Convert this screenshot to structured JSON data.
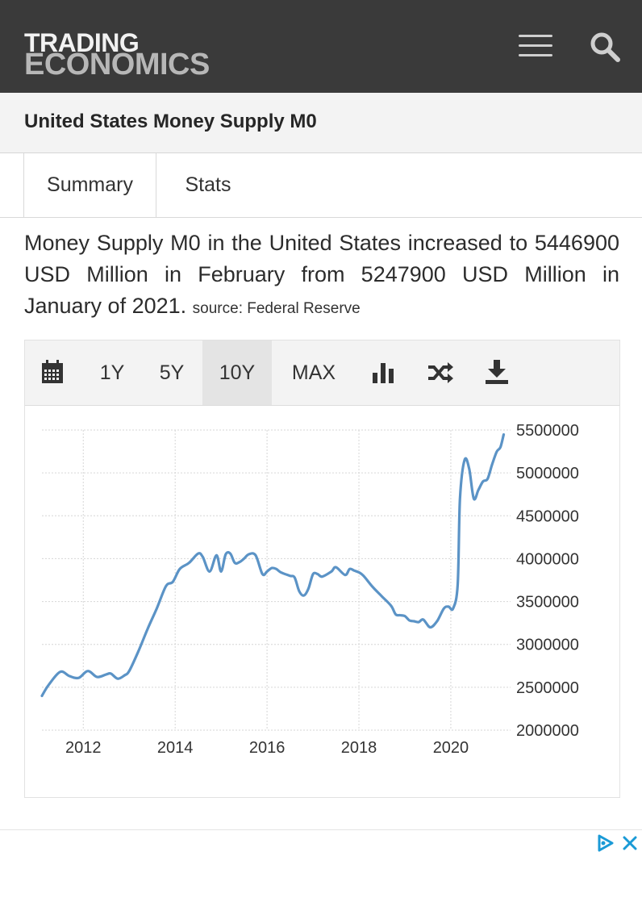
{
  "header": {
    "logo_line1": "TRADING",
    "logo_line2": "ECONOMICS",
    "menu_icon": "hamburger-icon",
    "search_icon": "search-icon"
  },
  "page": {
    "title": "United States Money Supply M0"
  },
  "tabs": [
    {
      "label": "Summary",
      "active": true
    },
    {
      "label": "Stats",
      "active": false
    }
  ],
  "summary": {
    "text": "Money Supply M0 in the United States increased to 5446900 USD Million in February from 5247900 USD Million in January of 2021.",
    "source": "source: Federal Reserve"
  },
  "chart_toolbar": {
    "calendar_icon": "calendar-icon",
    "ranges": [
      "1Y",
      "5Y",
      "10Y",
      "MAX"
    ],
    "selected_range": "10Y",
    "chart_type_icon": "bar-chart-icon",
    "compare_icon": "shuffle-icon",
    "download_icon": "download-icon"
  },
  "colors": {
    "line": "#5b93c6",
    "topbar": "#3a3a3a",
    "grid": "#d6d6d6"
  },
  "chart_data": {
    "type": "line",
    "title": "",
    "xlabel": "",
    "ylabel": "",
    "xlim": [
      2011.1,
      2021.3
    ],
    "ylim": [
      2000000,
      5500000
    ],
    "x_ticks": [
      2012,
      2014,
      2016,
      2018,
      2020
    ],
    "x_tick_labels": [
      "2012",
      "2014",
      "2016",
      "2018",
      "2020"
    ],
    "y_ticks": [
      2000000,
      2500000,
      3000000,
      3500000,
      4000000,
      4500000,
      5000000,
      5500000
    ],
    "y_tick_labels": [
      "2000000",
      "2500000",
      "3000000",
      "3500000",
      "4000000",
      "4500000",
      "5000000",
      "5500000"
    ],
    "grid": true,
    "legend": "none",
    "series": [
      {
        "x": [
          2011.1,
          2011.25,
          2011.5,
          2011.7,
          2011.9,
          2012.1,
          2012.3,
          2012.5,
          2012.6,
          2012.75,
          2012.9,
          2013.0,
          2013.2,
          2013.4,
          2013.6,
          2013.8,
          2013.95,
          2014.1,
          2014.3,
          2014.5,
          2014.6,
          2014.75,
          2014.9,
          2015.0,
          2015.1,
          2015.2,
          2015.3,
          2015.4,
          2015.5,
          2015.6,
          2015.75,
          2015.9,
          2016.0,
          2016.1,
          2016.2,
          2016.3,
          2016.5,
          2016.6,
          2016.7,
          2016.8,
          2016.9,
          2017.0,
          2017.1,
          2017.2,
          2017.4,
          2017.5,
          2017.7,
          2017.8,
          2017.9,
          2018.0,
          2018.1,
          2018.3,
          2018.5,
          2018.7,
          2018.8,
          2018.9,
          2019.0,
          2019.1,
          2019.2,
          2019.3,
          2019.4,
          2019.55,
          2019.7,
          2019.85,
          2019.95,
          2020.05,
          2020.15,
          2020.2,
          2020.3,
          2020.4,
          2020.5,
          2020.6,
          2020.7,
          2020.8,
          2020.9,
          2021.0,
          2021.08,
          2021.15
        ],
        "values": [
          2400000,
          2530000,
          2680000,
          2630000,
          2610000,
          2690000,
          2620000,
          2650000,
          2660000,
          2600000,
          2640000,
          2690000,
          2920000,
          3180000,
          3420000,
          3680000,
          3730000,
          3880000,
          3950000,
          4060000,
          4020000,
          3850000,
          4040000,
          3850000,
          4050000,
          4060000,
          3950000,
          3960000,
          4000000,
          4050000,
          4040000,
          3820000,
          3850000,
          3890000,
          3880000,
          3840000,
          3800000,
          3780000,
          3620000,
          3570000,
          3650000,
          3820000,
          3820000,
          3790000,
          3850000,
          3900000,
          3810000,
          3880000,
          3860000,
          3840000,
          3800000,
          3670000,
          3560000,
          3450000,
          3350000,
          3340000,
          3330000,
          3280000,
          3270000,
          3260000,
          3290000,
          3200000,
          3270000,
          3420000,
          3440000,
          3420000,
          3700000,
          4700000,
          5150000,
          5050000,
          4700000,
          4800000,
          4900000,
          4930000,
          5100000,
          5247900,
          5300000,
          5446900
        ]
      }
    ]
  },
  "ad": {
    "play_icon": "ad-choices-icon",
    "close_icon": "close-icon"
  }
}
